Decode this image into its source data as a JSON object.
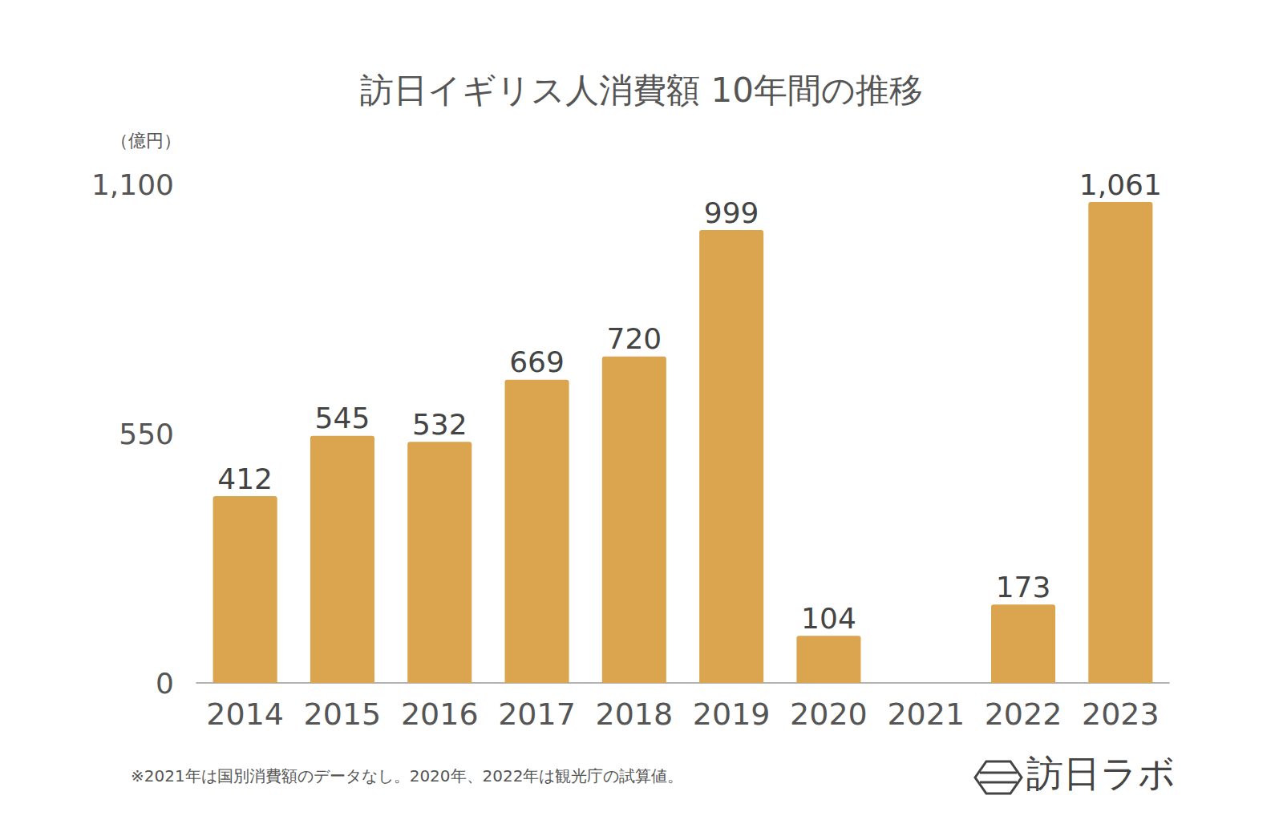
{
  "chart_data": {
    "type": "bar",
    "title": "訪日イギリス人消費額 10年間の推移",
    "ylabel": "（億円）",
    "categories": [
      "2014",
      "2015",
      "2016",
      "2017",
      "2018",
      "2019",
      "2020",
      "2021",
      "2022",
      "2023"
    ],
    "values": [
      412,
      545,
      532,
      669,
      720,
      999,
      104,
      null,
      173,
      1061
    ],
    "value_labels": [
      "412",
      "545",
      "532",
      "669",
      "720",
      "999",
      "104",
      null,
      "173",
      "1,061"
    ],
    "color": "#dba44e",
    "ylim": [
      0,
      1100
    ],
    "yticks": [
      0,
      550,
      {
        "value": 1100,
        "label": "1,100"
      }
    ],
    "grid": false,
    "data_labels": true,
    "annotations": [
      "※2021年は国別消費額のデータなし。2020年、2022年は観光庁の試算値。",
      "訪日ラボ"
    ]
  }
}
